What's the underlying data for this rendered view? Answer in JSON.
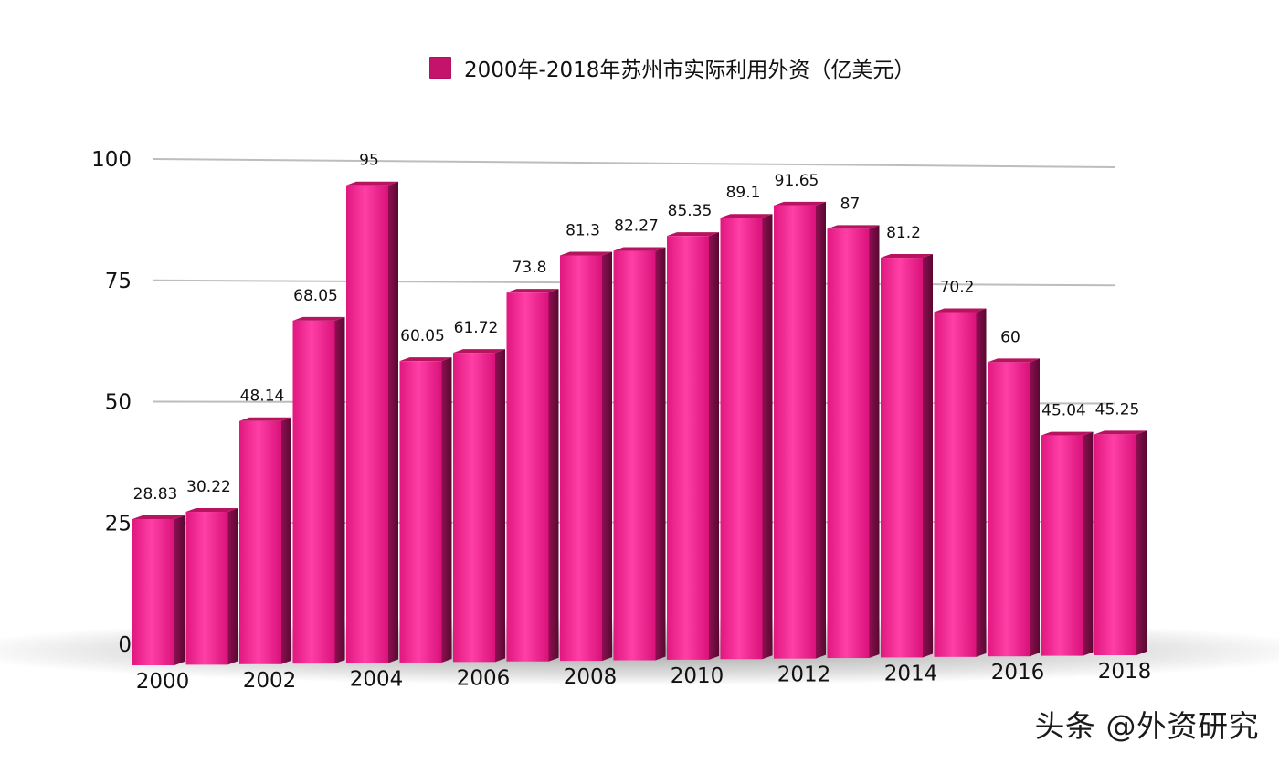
{
  "chart_data": {
    "type": "bar",
    "categories": [
      "2000",
      "2001",
      "2002",
      "2003",
      "2004",
      "2005",
      "2006",
      "2007",
      "2008",
      "2009",
      "2010",
      "2011",
      "2012",
      "2013",
      "2014",
      "2015",
      "2016",
      "2017",
      "2018"
    ],
    "series": [
      {
        "name": "2000年-2018年苏州市实际利用外资（亿美元）",
        "values": [
          28.83,
          30.22,
          48.14,
          68.05,
          95,
          60.05,
          61.72,
          73.8,
          81.3,
          82.27,
          85.35,
          89.1,
          91.65,
          87,
          81.2,
          70.2,
          60,
          45.04,
          45.25
        ]
      }
    ],
    "data_labels": [
      "28.83",
      "30.22",
      "48.14",
      "68.05",
      "95",
      "60.05",
      "61.72",
      "73.8",
      "81.3",
      "82.27",
      "85.35",
      "89.1",
      "91.65",
      "87",
      "81.2",
      "70.2",
      "60",
      "45.04",
      "45.25"
    ],
    "x_tick_labels": [
      "2000",
      "2002",
      "2004",
      "2006",
      "2008",
      "2010",
      "2012",
      "2014",
      "2016",
      "2018"
    ],
    "y_ticks": [
      0,
      25,
      50,
      75,
      100
    ],
    "y_tick_labels": [
      "0",
      "25",
      "50",
      "75",
      "100"
    ],
    "ylim": [
      0,
      100
    ],
    "xlabel": "",
    "ylabel": "",
    "legend_position": "top",
    "grid": true,
    "style": "3d-perspective"
  },
  "colors": {
    "bar_front": "#ee1a8c",
    "bar_front_light": "#ff4db0",
    "bar_side": "#7a0c45",
    "bar_top": "#b8135f",
    "legend_swatch": "#c4136b",
    "grid": "#bdbdbd",
    "text": "#111111"
  },
  "legend": {
    "label": "2000年-2018年苏州市实际利用外资（亿美元）"
  },
  "watermark": {
    "text": "头条 @外资研究"
  }
}
